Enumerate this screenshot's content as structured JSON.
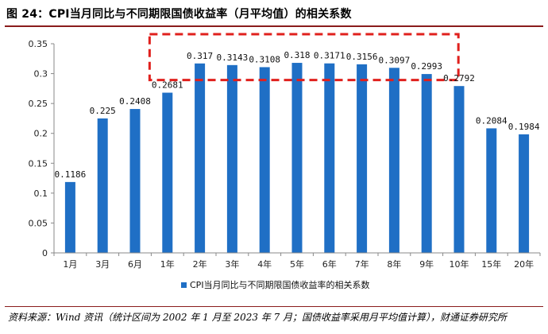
{
  "figure": {
    "title": "图 24：CPI当月同比与不同期限国债收益率（月平均值）的相关系数",
    "source": "资料来源：Wind 资讯（统计区间为 2002 年 1 月至 2023 年 7 月；国债收益率采用月平均值计算），财通证券研究所"
  },
  "colors": {
    "bar": "#1f6fc5",
    "highlight_box": "#e0201d",
    "title_rule": "#8a1c1c"
  },
  "chart_data": {
    "type": "bar",
    "categories": [
      "1月",
      "3月",
      "6月",
      "1年",
      "2年",
      "3年",
      "4年",
      "5年",
      "6年",
      "7年",
      "8年",
      "9年",
      "10年",
      "15年",
      "20年"
    ],
    "series": [
      {
        "name": "CPI当月同比与不同期限国债收益率的相关系数",
        "values": [
          0.1186,
          0.225,
          0.2408,
          0.2681,
          0.317,
          0.3143,
          0.3108,
          0.318,
          0.3171,
          0.3156,
          0.3097,
          0.2993,
          0.2792,
          0.2084,
          0.1984
        ]
      }
    ],
    "data_labels": [
      "0.1186",
      "0.225",
      "0.2408",
      "0.2681",
      "0.317",
      "0.3143",
      "0.3108",
      "0.318",
      "0.3171",
      "0.3156",
      "0.3097",
      "0.2993",
      "0.2792",
      "0.2084",
      "0.1984"
    ],
    "ylim": [
      0,
      0.35
    ],
    "yticks": [
      "0",
      "0.05",
      "0.1",
      "0.15",
      "0.2",
      "0.25",
      "0.3",
      "0.35"
    ],
    "grid": false,
    "legend_position": "bottom",
    "annotation": {
      "type": "dashed-box",
      "covers_categories": [
        "2年",
        "9年"
      ]
    }
  }
}
